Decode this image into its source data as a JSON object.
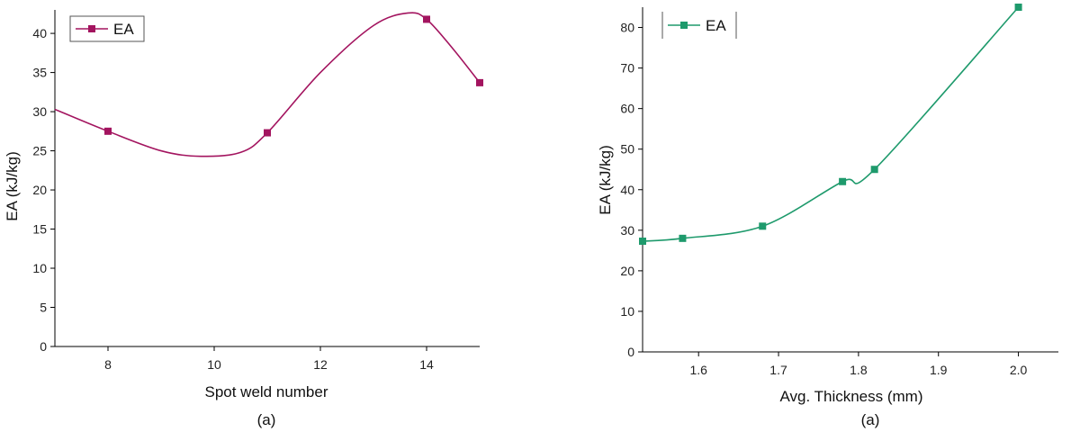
{
  "chart_data": [
    {
      "type": "line",
      "title": "",
      "caption": "(a)",
      "xlabel": "Spot weld number",
      "ylabel": "EA (kJ/kg)",
      "xlim": [
        7,
        15
      ],
      "ylim": [
        0,
        43
      ],
      "xticks": [
        "8",
        "10",
        "12",
        "14"
      ],
      "yticks": [
        "0",
        "5",
        "10",
        "15",
        "20",
        "25",
        "30",
        "35",
        "40"
      ],
      "legend_position": "top-left",
      "smooth": true,
      "series": [
        {
          "name": "EA",
          "color": "#a3145f",
          "marker": "square",
          "x": [
            8,
            11,
            14,
            15
          ],
          "y": [
            27.5,
            27.3,
            41.8,
            33.7
          ],
          "curve_x": [
            7,
            8,
            9,
            9.75,
            10.5,
            11,
            12,
            13,
            13.65,
            14,
            14.5,
            15
          ],
          "curve_y": [
            30.3,
            27.5,
            25.0,
            24.3,
            24.8,
            27.3,
            35.0,
            41.0,
            42.6,
            41.8,
            38.0,
            33.7
          ]
        }
      ]
    },
    {
      "type": "line",
      "title": "",
      "caption": "(a)",
      "xlabel": "Avg. Thickness (mm)",
      "ylabel": "EA (kJ/kg)",
      "xlim": [
        1.53,
        2.05
      ],
      "ylim": [
        0,
        85
      ],
      "xticks": [
        "1.6",
        "1.7",
        "1.8",
        "1.9",
        "2.0"
      ],
      "yticks": [
        "0",
        "10",
        "20",
        "30",
        "40",
        "50",
        "60",
        "70",
        "80"
      ],
      "legend_position": "top-left",
      "smooth": true,
      "series": [
        {
          "name": "EA",
          "color": "#1e9a6c",
          "marker": "square",
          "x": [
            1.53,
            1.58,
            1.68,
            1.78,
            1.82,
            2.0
          ],
          "y": [
            27.3,
            28.0,
            31.0,
            42.0,
            45.0,
            85.0
          ]
        }
      ]
    }
  ]
}
